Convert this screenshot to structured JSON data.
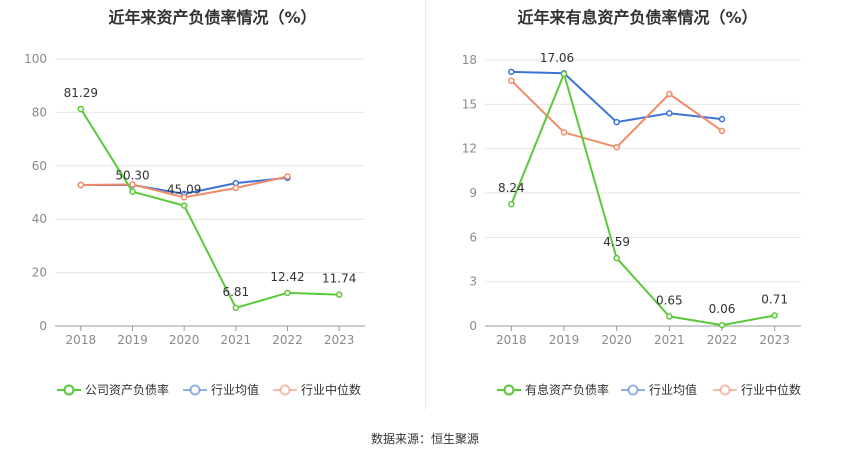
{
  "source": "数据来源：恒生聚源",
  "colors": {
    "company": "#5bc839",
    "avg": "#3b74d6",
    "median": "#f28b68"
  },
  "chart_data": [
    {
      "type": "line",
      "title": "近年来资产负债率情况（%）",
      "categories": [
        "2018",
        "2019",
        "2020",
        "2021",
        "2022",
        "2023"
      ],
      "ylim": [
        0,
        100
      ],
      "yticks": [
        0,
        20,
        40,
        60,
        80,
        100
      ],
      "grid": true,
      "legend_position": "bottom",
      "series": [
        {
          "name": "公司资产负债率",
          "color": "#5bc839",
          "values": [
            81.29,
            50.3,
            45.09,
            6.81,
            12.42,
            11.74
          ],
          "labels": [
            "81.29",
            "50.30",
            "45.09",
            "6.81",
            "12.42",
            "11.74"
          ]
        },
        {
          "name": "行业均值",
          "color": "#3b74d6",
          "values": [
            52.8,
            52.8,
            49.5,
            53.5,
            55.5,
            null
          ]
        },
        {
          "name": "行业中位数",
          "color": "#f28b68",
          "values": [
            52.8,
            53.0,
            48.2,
            51.7,
            56.0,
            null
          ]
        }
      ]
    },
    {
      "type": "line",
      "title": "近年来有息资产负债率情况（%）",
      "categories": [
        "2018",
        "2019",
        "2020",
        "2021",
        "2022",
        "2023"
      ],
      "ylim": [
        0,
        18
      ],
      "yticks": [
        0,
        3,
        6,
        9,
        12,
        15,
        18
      ],
      "grid": true,
      "legend_position": "bottom",
      "series": [
        {
          "name": "有息资产负债率",
          "color": "#5bc839",
          "values": [
            8.24,
            17.06,
            4.59,
            0.65,
            0.06,
            0.71
          ],
          "labels": [
            "8.24",
            "17.06",
            "4.59",
            "0.65",
            "0.06",
            "0.71"
          ]
        },
        {
          "name": "行业均值",
          "color": "#3b74d6",
          "values": [
            17.2,
            17.1,
            13.8,
            14.4,
            14.0,
            null
          ]
        },
        {
          "name": "行业中位数",
          "color": "#f28b68",
          "values": [
            16.6,
            13.1,
            12.1,
            15.7,
            13.2,
            null
          ]
        }
      ]
    }
  ]
}
